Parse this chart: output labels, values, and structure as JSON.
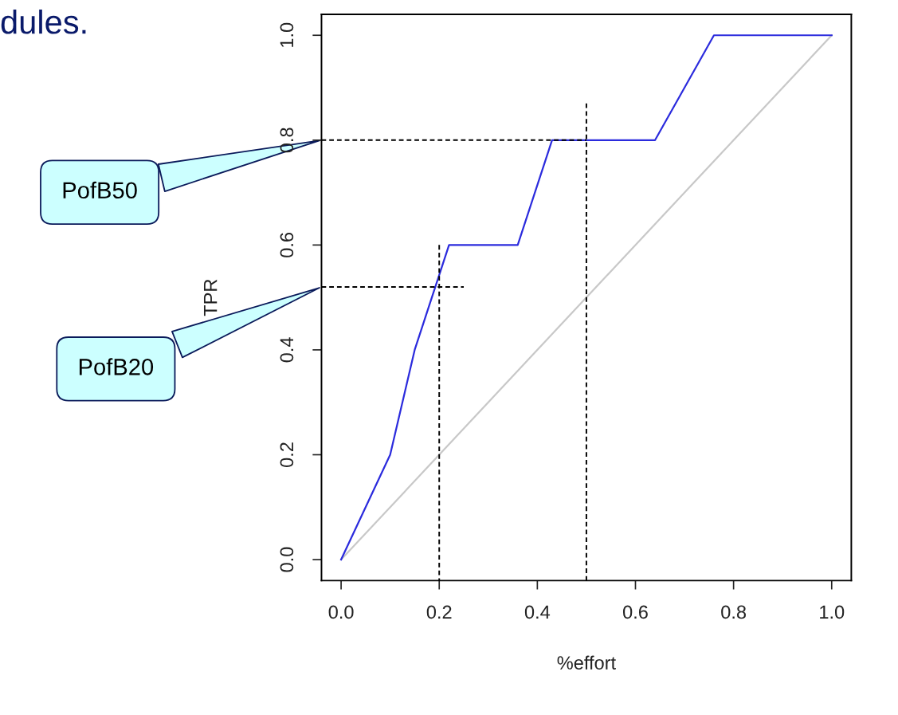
{
  "chart_data": {
    "type": "line",
    "xlabel": "%effort",
    "ylabel": "TPR",
    "xlim": [
      -0.04,
      1.04
    ],
    "ylim": [
      -0.04,
      1.04
    ],
    "xticks": [
      {
        "value": 0,
        "label": "0.0"
      },
      0.2,
      0.4,
      0.6,
      0.8,
      {
        "value": 1,
        "label": "1.0"
      }
    ],
    "yticks": [
      {
        "value": 0,
        "label": "0.0"
      },
      0.2,
      0.4,
      0.6,
      0.8,
      {
        "value": 1,
        "label": "1.0"
      }
    ],
    "grid": false,
    "marker": "none",
    "series": [
      {
        "x": [
          0,
          1
        ],
        "values": [
          0,
          1
        ],
        "color": "#c8c8c8",
        "line_style": "solid"
      },
      {
        "x": [
          0,
          0.1,
          0.15,
          0.22,
          0.36,
          0.43,
          0.64,
          0.76,
          1
        ],
        "values": [
          0,
          0.2,
          0.4,
          0.6,
          0.6,
          0.8,
          0.8,
          1,
          1
        ],
        "color": "#2b2bdd",
        "line_style": "solid"
      },
      {
        "x": [
          -0.04,
          0.5
        ],
        "values": [
          0.8,
          0.8
        ],
        "color": "#000000",
        "line_style": "dashed"
      },
      {
        "x": [
          -0.04,
          0.25
        ],
        "values": [
          0.52,
          0.52
        ],
        "color": "#000000",
        "line_style": "dashed"
      },
      {
        "x": [
          0.2,
          0.2
        ],
        "values": [
          0.6,
          -0.04
        ],
        "color": "#000000",
        "line_style": "dashed"
      },
      {
        "x": [
          0.5,
          0.5
        ],
        "values": [
          0.87,
          -0.04
        ],
        "color": "#000000",
        "line_style": "dashed"
      }
    ],
    "annotations": [
      "dules.",
      {
        "text": "PofB50",
        "x": -0.04,
        "y": 0.8
      },
      {
        "text": "PofB20",
        "x": -0.04,
        "y": 0.52
      }
    ]
  }
}
